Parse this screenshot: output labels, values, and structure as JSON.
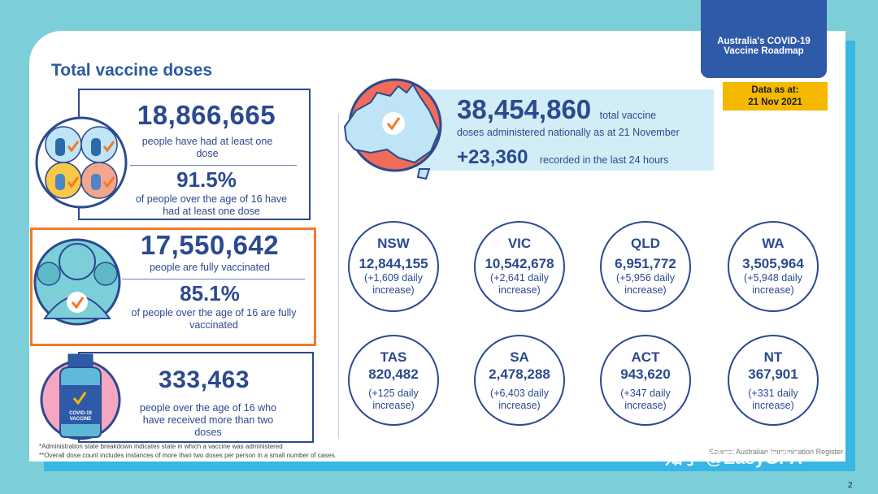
{
  "title": "Total vaccine doses",
  "roadmap": {
    "line1": "Australia's COVID-19",
    "line2": "Vaccine Roadmap"
  },
  "data_as_at": {
    "line1": "Data as at:",
    "line2": "21 Nov 2021"
  },
  "panel1": {
    "number": "18,866,665",
    "desc": "people have had at least one dose",
    "pct": "91.5%",
    "pct_desc": "of people over the age of 16 have had at least one dose"
  },
  "panel2": {
    "number": "17,550,642",
    "desc": "people are fully vaccinated",
    "pct": "85.1%",
    "pct_desc": "of people over the age of 16 are fully vaccinated"
  },
  "panel3": {
    "number": "333,463",
    "desc": "people over the age of 16 who have received more than two doses",
    "vial_label1": "COVID-19",
    "vial_label2": "VACCINE"
  },
  "total": {
    "number": "38,454,860",
    "suffix": "total vaccine",
    "line2": "doses administered nationally as at 21 November",
    "daily": "+23,360",
    "daily_desc": "recorded in the last 24 hours"
  },
  "states": [
    {
      "abbr": "NSW",
      "num": "12,844,155",
      "inc1": "(+1,609 daily",
      "inc2": "increase)"
    },
    {
      "abbr": "VIC",
      "num": "10,542,678",
      "inc1": "(+2,641 daily",
      "inc2": "increase)"
    },
    {
      "abbr": "QLD",
      "num": "6,951,772",
      "inc1": "(+5,956 daily",
      "inc2": "increase)"
    },
    {
      "abbr": "WA",
      "num": "3,505,964",
      "inc1": "(+5,948 daily",
      "inc2": "increase)"
    },
    {
      "abbr": "TAS",
      "num": "820,482",
      "inc1": "(+125 daily",
      "inc2": "increase)"
    },
    {
      "abbr": "SA",
      "num": "2,478,288",
      "inc1": "(+6,403 daily",
      "inc2": "increase)"
    },
    {
      "abbr": "ACT",
      "num": "943,620",
      "inc1": "(+347 daily",
      "inc2": "increase)"
    },
    {
      "abbr": "NT",
      "num": "367,901",
      "inc1": "(+331 daily",
      "inc2": "increase)"
    }
  ],
  "footnotes": [
    "*Administration state breakdown indicates state in which a vaccine was administered",
    "**Overall dose count includes instances of more than two doses per person in a small number of cases."
  ],
  "watermark": "知乎 @EasyGPA",
  "source_text": "Source: Australian Immunisation Register",
  "page_number": "2",
  "colors": {
    "navy": "#2b4a8f",
    "orange": "#f07a2a",
    "teal": "#7ccfd8",
    "yellow": "#f5b800",
    "accent_red": "#f06b5a"
  }
}
